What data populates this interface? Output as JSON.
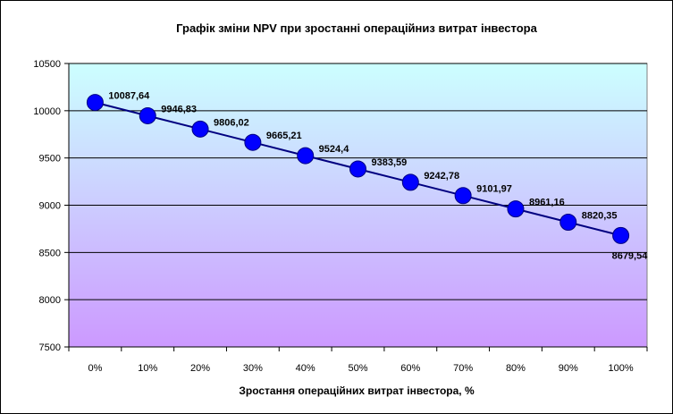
{
  "chart_data": {
    "type": "line",
    "title": "Графік зміни  NPV при зростанні операційниз витрат інвестора",
    "xlabel": "Зростання операційних витрат інвестора, %",
    "ylabel": "",
    "categories": [
      "0%",
      "10%",
      "20%",
      "30%",
      "40%",
      "50%",
      "60%",
      "70%",
      "80%",
      "90%",
      "100%"
    ],
    "series": [
      {
        "values": [
          10087.64,
          9946.83,
          9806.02,
          9665.21,
          9524.4,
          9383.59,
          9242.78,
          9101.97,
          8961.16,
          8820.35,
          8679.54
        ],
        "labels": [
          "10087,64",
          "9946,83",
          "9806,02",
          "9665,21",
          "9524,4",
          "9383,59",
          "9242,78",
          "9101,97",
          "8961,16",
          "8820,35",
          "8679,54"
        ],
        "color": "#0000ff"
      }
    ],
    "ylim": [
      7500,
      10500
    ],
    "yticks": [
      "7500",
      "8000",
      "8500",
      "9000",
      "9500",
      "10000",
      "10500"
    ],
    "ytick_values": [
      7500,
      8000,
      8500,
      9000,
      9500,
      10000,
      10500
    ],
    "grid": true,
    "legend": "none",
    "colors": {
      "plot_top": "#ccffff",
      "plot_bottom": "#cc99ff",
      "line": "#000080",
      "marker": "#0000ff"
    }
  }
}
